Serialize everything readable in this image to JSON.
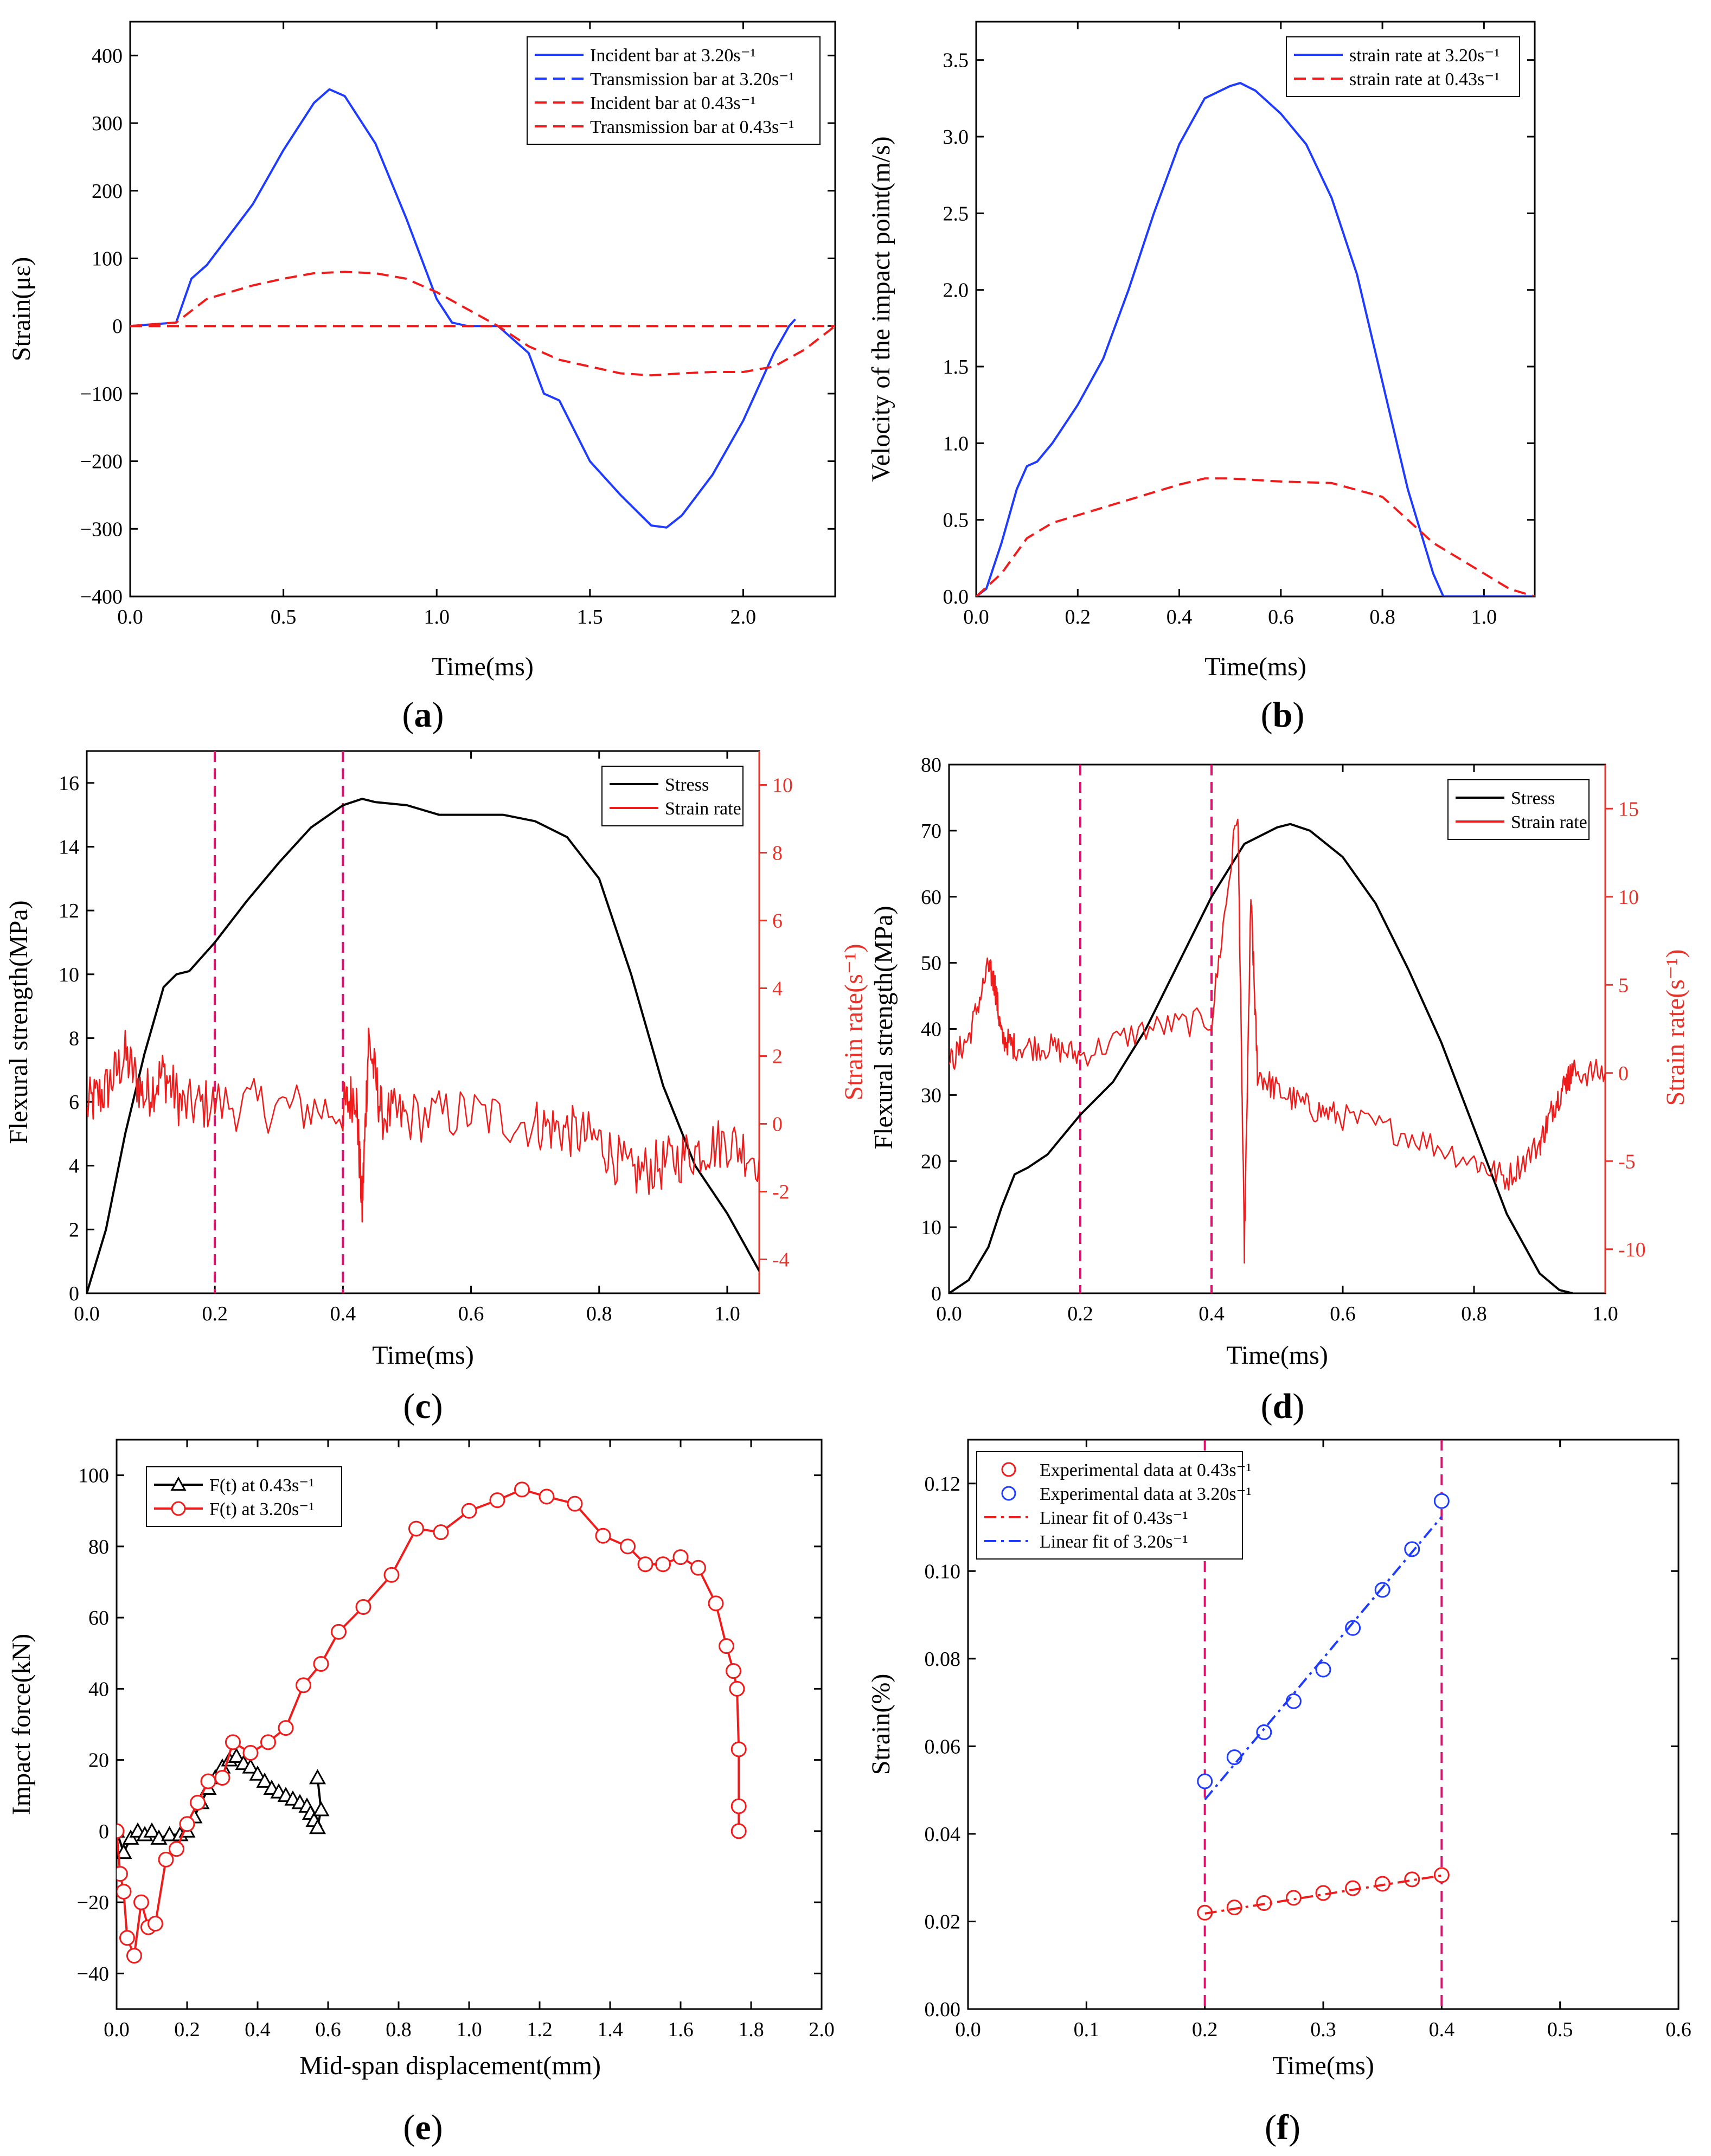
{
  "colors": {
    "blue": "#1f3bff",
    "red": "#f01c1c",
    "black": "#000000",
    "magenta": "#e0106e",
    "axis_red": "#e8332a"
  },
  "chart_data": [
    {
      "id": "a",
      "caption": "(a)",
      "caption_letter": "a",
      "type": "line",
      "title": "",
      "xlabel": "Time(ms)",
      "ylabel": "Strain(με)",
      "xlim": [
        0,
        2.3
      ],
      "ylim": [
        -400,
        450
      ],
      "xticks": [
        0.0,
        0.5,
        1.0,
        1.5,
        2.0
      ],
      "xtick_labels": [
        "0.0",
        "0.5",
        "1.0",
        "1.5",
        "2.0"
      ],
      "yticks": [
        -400,
        -300,
        -200,
        -100,
        0,
        100,
        200,
        300,
        400
      ],
      "ytick_labels": [
        "−400",
        "−300",
        "−200",
        "−100",
        "0",
        "100",
        "200",
        "300",
        "400"
      ],
      "legend_position": "top-right",
      "series": [
        {
          "name": "Incident bar at 3.20s⁻¹",
          "color": "blue",
          "style": "solid",
          "x": [
            0,
            0.15,
            0.2,
            0.25,
            0.3,
            0.4,
            0.5,
            0.6,
            0.65,
            0.7,
            0.8,
            0.9,
            1.0,
            1.05,
            1.1,
            1.2,
            1.3,
            1.35,
            1.4,
            1.5,
            1.6,
            1.7,
            1.75,
            1.8,
            1.9,
            2.0,
            2.1,
            2.15,
            2.17
          ],
          "y": [
            0,
            5,
            70,
            90,
            120,
            180,
            260,
            330,
            350,
            340,
            270,
            160,
            40,
            5,
            0,
            0,
            -40,
            -100,
            -110,
            -200,
            -250,
            -295,
            -298,
            -280,
            -220,
            -140,
            -40,
            0,
            10
          ]
        },
        {
          "name": "Transmission bar at 3.20s⁻¹",
          "color": "blue",
          "style": "dashed",
          "x": [
            0,
            2.17
          ],
          "y": [
            0,
            0
          ]
        },
        {
          "name": "Incident bar at 0.43s⁻¹",
          "color": "red",
          "style": "dashed",
          "x": [
            0,
            0.15,
            0.25,
            0.4,
            0.5,
            0.6,
            0.7,
            0.8,
            0.9,
            1.0,
            1.1,
            1.2,
            1.3,
            1.4,
            1.6,
            1.7,
            1.8,
            1.9,
            2.0,
            2.1,
            2.2,
            2.3
          ],
          "y": [
            0,
            5,
            40,
            60,
            70,
            78,
            80,
            78,
            70,
            50,
            25,
            0,
            -30,
            -50,
            -70,
            -73,
            -70,
            -68,
            -68,
            -60,
            -35,
            0
          ]
        },
        {
          "name": "Transmission bar at 0.43s⁻¹",
          "color": "red",
          "style": "dashed",
          "x": [
            0,
            2.3
          ],
          "y": [
            0,
            0
          ]
        }
      ]
    },
    {
      "id": "b",
      "caption": "(b)",
      "caption_letter": "b",
      "type": "line",
      "title": "",
      "xlabel": "Time(ms)",
      "ylabel": "Velocity of the impact point(m/s)",
      "xlim": [
        0,
        1.1
      ],
      "ylim": [
        0,
        3.75
      ],
      "xticks": [
        0.0,
        0.2,
        0.4,
        0.6,
        0.8,
        1.0
      ],
      "xtick_labels": [
        "0.0",
        "0.2",
        "0.4",
        "0.6",
        "0.8",
        "1.0"
      ],
      "yticks": [
        0.0,
        0.5,
        1.0,
        1.5,
        2.0,
        2.5,
        3.0,
        3.5
      ],
      "ytick_labels": [
        "0.0",
        "0.5",
        "1.0",
        "1.5",
        "2.0",
        "2.5",
        "3.0",
        "3.5"
      ],
      "legend_position": "top-right",
      "series": [
        {
          "name": "strain rate at 3.20s⁻¹",
          "color": "blue",
          "style": "solid",
          "x": [
            0,
            0.02,
            0.05,
            0.08,
            0.1,
            0.12,
            0.15,
            0.2,
            0.25,
            0.3,
            0.35,
            0.4,
            0.45,
            0.5,
            0.52,
            0.55,
            0.6,
            0.65,
            0.7,
            0.75,
            0.8,
            0.85,
            0.9,
            0.92,
            0.95,
            1.1
          ],
          "y": [
            0,
            0.05,
            0.35,
            0.7,
            0.85,
            0.88,
            1.0,
            1.25,
            1.55,
            2.0,
            2.5,
            2.95,
            3.25,
            3.33,
            3.35,
            3.3,
            3.15,
            2.95,
            2.6,
            2.1,
            1.4,
            0.7,
            0.15,
            0,
            0,
            0
          ]
        },
        {
          "name": "strain rate at 0.43s⁻¹",
          "color": "red",
          "style": "dashed",
          "x": [
            0,
            0.05,
            0.1,
            0.15,
            0.2,
            0.3,
            0.4,
            0.45,
            0.5,
            0.6,
            0.7,
            0.8,
            0.85,
            0.9,
            0.95,
            1.0,
            1.05,
            1.1
          ],
          "y": [
            0,
            0.15,
            0.38,
            0.48,
            0.53,
            0.63,
            0.73,
            0.77,
            0.77,
            0.75,
            0.74,
            0.65,
            0.5,
            0.35,
            0.25,
            0.15,
            0.05,
            0.0
          ]
        }
      ]
    },
    {
      "id": "c",
      "caption": "(c)",
      "caption_letter": "c",
      "type": "line",
      "title": "",
      "xlabel": "Time(ms)",
      "ylabel": "Flexural strength(MPa)",
      "y2label": "Strain rate(s⁻¹)",
      "xlim": [
        0,
        1.05
      ],
      "ylim": [
        0,
        17
      ],
      "y2lim": [
        -5,
        11
      ],
      "xticks": [
        0.0,
        0.2,
        0.4,
        0.6,
        0.8,
        1.0
      ],
      "xtick_labels": [
        "0.0",
        "0.2",
        "0.4",
        "0.6",
        "0.8",
        "1.0"
      ],
      "yticks": [
        0,
        2,
        4,
        6,
        8,
        10,
        12,
        14,
        16
      ],
      "ytick_labels": [
        "0",
        "2",
        "4",
        "6",
        "8",
        "10",
        "12",
        "14",
        "16"
      ],
      "y2ticks": [
        -4,
        -2,
        0,
        2,
        4,
        6,
        8,
        10
      ],
      "y2tick_labels": [
        "-4",
        "-2",
        "0",
        "2",
        "4",
        "6",
        "8",
        "10"
      ],
      "vlines": [
        0.2,
        0.4
      ],
      "legend_position": "top-right",
      "series": [
        {
          "name": "Stress",
          "color": "black",
          "style": "solid",
          "axis": "left",
          "x": [
            0,
            0.03,
            0.06,
            0.09,
            0.12,
            0.14,
            0.16,
            0.2,
            0.25,
            0.3,
            0.35,
            0.4,
            0.43,
            0.45,
            0.5,
            0.55,
            0.6,
            0.65,
            0.7,
            0.75,
            0.8,
            0.85,
            0.9,
            0.95,
            1.0,
            1.05
          ],
          "y": [
            0,
            2.0,
            5.0,
            7.5,
            9.6,
            10.0,
            10.1,
            11.0,
            12.3,
            13.5,
            14.6,
            15.3,
            15.5,
            15.4,
            15.3,
            15.0,
            15.0,
            15.0,
            14.8,
            14.3,
            13.0,
            10.0,
            6.5,
            4.0,
            2.5,
            0.7
          ]
        },
        {
          "name": "Strain rate",
          "color": "red",
          "style": "solid",
          "axis": "right",
          "noisy": true,
          "x": [
            0,
            0.03,
            0.06,
            0.09,
            0.12,
            0.15,
            0.2,
            0.3,
            0.4,
            0.42,
            0.43,
            0.44,
            0.46,
            0.5,
            0.6,
            0.7,
            0.75,
            0.8,
            0.85,
            0.9,
            0.95,
            1.0,
            1.05
          ],
          "y": [
            0.5,
            1.0,
            2.0,
            0.8,
            1.5,
            0.5,
            0.6,
            0.5,
            0.4,
            1.0,
            -2.5,
            2.5,
            0.3,
            0.2,
            0.3,
            0.0,
            -0.2,
            -0.5,
            -1.5,
            -1.2,
            -0.8,
            -0.5,
            -1.0
          ]
        }
      ]
    },
    {
      "id": "d",
      "caption": "(d)",
      "caption_letter": "d",
      "type": "line",
      "title": "",
      "xlabel": "Time(ms)",
      "ylabel": "Flexural strength(MPa)",
      "y2label": "Strain rate(s⁻¹)",
      "xlim": [
        0,
        1.0
      ],
      "ylim": [
        0,
        80
      ],
      "y2lim": [
        -12.5,
        17.5
      ],
      "xticks": [
        0.0,
        0.2,
        0.4,
        0.6,
        0.8,
        1.0
      ],
      "xtick_labels": [
        "0.0",
        "0.2",
        "0.4",
        "0.6",
        "0.8",
        "1.0"
      ],
      "yticks": [
        0,
        10,
        20,
        30,
        40,
        50,
        60,
        70,
        80
      ],
      "ytick_labels": [
        "0",
        "10",
        "20",
        "30",
        "40",
        "50",
        "60",
        "70",
        "80"
      ],
      "y2ticks": [
        -10,
        -5,
        0,
        5,
        10,
        15
      ],
      "y2tick_labels": [
        "-10",
        "-5",
        "0",
        "5",
        "10",
        "15"
      ],
      "vlines": [
        0.2,
        0.4
      ],
      "legend_position": "top-right",
      "series": [
        {
          "name": "Stress",
          "color": "black",
          "style": "solid",
          "axis": "left",
          "x": [
            0,
            0.03,
            0.06,
            0.08,
            0.1,
            0.12,
            0.15,
            0.2,
            0.25,
            0.3,
            0.35,
            0.4,
            0.45,
            0.5,
            0.52,
            0.55,
            0.6,
            0.65,
            0.7,
            0.75,
            0.8,
            0.85,
            0.9,
            0.93,
            0.95
          ],
          "y": [
            0,
            2,
            7,
            13,
            18,
            19,
            21,
            27,
            32,
            40,
            50,
            60,
            68,
            70.5,
            71,
            70,
            66,
            59,
            49,
            38,
            25,
            12,
            3,
            0.5,
            0
          ]
        },
        {
          "name": "Strain rate",
          "color": "red",
          "style": "solid",
          "axis": "right",
          "noisy": true,
          "x": [
            0,
            0.03,
            0.06,
            0.07,
            0.08,
            0.1,
            0.15,
            0.2,
            0.3,
            0.4,
            0.44,
            0.45,
            0.46,
            0.47,
            0.5,
            0.55,
            0.6,
            0.7,
            0.8,
            0.85,
            0.9,
            0.92,
            0.94,
            0.95,
            1.0
          ],
          "y": [
            0.5,
            2.0,
            6.0,
            5.0,
            2.0,
            1.5,
            1.5,
            1.0,
            2.5,
            3.0,
            15.0,
            -10.0,
            10.0,
            0.0,
            -1.0,
            -2.0,
            -2.5,
            -3.5,
            -5.0,
            -6.0,
            -4.0,
            -2.0,
            -0.5,
            0.0,
            0.0
          ]
        }
      ]
    },
    {
      "id": "e",
      "caption": "(e)",
      "caption_letter": "e",
      "type": "line",
      "title": "",
      "xlabel": "Mid-span displacement(mm)",
      "ylabel": "Impact force(kN)",
      "xlim": [
        0,
        2.0
      ],
      "ylim": [
        -50,
        110
      ],
      "xticks": [
        0.0,
        0.2,
        0.4,
        0.6,
        0.8,
        1.0,
        1.2,
        1.4,
        1.6,
        1.8,
        2.0
      ],
      "xtick_labels": [
        "0.0",
        "0.2",
        "0.4",
        "0.6",
        "0.8",
        "1.0",
        "1.2",
        "1.4",
        "1.6",
        "1.8",
        "2.0"
      ],
      "yticks": [
        -40,
        -20,
        0,
        20,
        40,
        60,
        80,
        100
      ],
      "ytick_labels": [
        "−40",
        "−20",
        "0",
        "20",
        "40",
        "60",
        "80",
        "100"
      ],
      "legend_position": "top-left",
      "series": [
        {
          "name": "F(t) at 0.43s⁻¹",
          "color": "black",
          "style": "solid",
          "marker": "triangle",
          "x": [
            0.0,
            0.02,
            0.04,
            0.06,
            0.08,
            0.1,
            0.12,
            0.15,
            0.18,
            0.2,
            0.22,
            0.24,
            0.26,
            0.28,
            0.3,
            0.32,
            0.34,
            0.36,
            0.38,
            0.4,
            0.42,
            0.44,
            0.46,
            0.48,
            0.5,
            0.52,
            0.54,
            0.55,
            0.56,
            0.57,
            0.58,
            0.57
          ],
          "y": [
            0,
            -6,
            -2,
            0,
            -1,
            0,
            -2,
            -1,
            -1,
            0,
            4,
            8,
            12,
            15,
            18,
            20,
            21,
            19,
            18,
            16,
            14,
            12,
            11,
            10,
            9,
            8,
            7,
            5,
            3,
            1,
            6,
            15
          ]
        },
        {
          "name": "F(t) at 3.20s⁻¹",
          "color": "red",
          "style": "solid",
          "marker": "circle",
          "x": [
            0.0,
            0.01,
            0.02,
            0.03,
            0.05,
            0.07,
            0.09,
            0.11,
            0.14,
            0.17,
            0.2,
            0.23,
            0.26,
            0.3,
            0.33,
            0.38,
            0.43,
            0.48,
            0.53,
            0.58,
            0.63,
            0.7,
            0.78,
            0.85,
            0.92,
            1.0,
            1.08,
            1.15,
            1.22,
            1.3,
            1.38,
            1.45,
            1.5,
            1.55,
            1.6,
            1.65,
            1.7,
            1.73,
            1.75,
            1.76,
            1.765,
            1.765,
            1.765
          ],
          "y": [
            0,
            -12,
            -17,
            -30,
            -35,
            -20,
            -27,
            -26,
            -8,
            -5,
            2,
            8,
            14,
            15,
            25,
            22,
            25,
            29,
            41,
            47,
            56,
            63,
            72,
            85,
            84,
            90,
            93,
            96,
            94,
            92,
            83,
            80,
            75,
            75,
            77,
            74,
            64,
            52,
            45,
            40,
            23,
            7,
            0
          ]
        }
      ]
    },
    {
      "id": "f",
      "caption": "(f)",
      "caption_letter": "f",
      "type": "scatter",
      "title": "",
      "xlabel": "Time(ms)",
      "ylabel": "Strain(%)",
      "xlim": [
        0,
        0.6
      ],
      "ylim": [
        0,
        0.13
      ],
      "xticks": [
        0.0,
        0.1,
        0.2,
        0.3,
        0.4,
        0.5,
        0.6
      ],
      "xtick_labels": [
        "0.0",
        "0.1",
        "0.2",
        "0.3",
        "0.4",
        "0.5",
        "0.6"
      ],
      "yticks": [
        0.0,
        0.02,
        0.04,
        0.06,
        0.08,
        0.1,
        0.12
      ],
      "ytick_labels": [
        "0.00",
        "0.02",
        "0.04",
        "0.06",
        "0.08",
        "0.10",
        "0.12"
      ],
      "vlines": [
        0.2,
        0.4
      ],
      "legend_position": "top-left",
      "series": [
        {
          "name": "Experimental data at 0.43s⁻¹",
          "color": "red",
          "style": "none",
          "marker": "circle",
          "x": [
            0.2,
            0.225,
            0.25,
            0.275,
            0.3,
            0.325,
            0.35,
            0.375,
            0.4
          ],
          "y": [
            0.022,
            0.0232,
            0.0242,
            0.0254,
            0.0265,
            0.0276,
            0.0286,
            0.0296,
            0.0306
          ]
        },
        {
          "name": "Experimental data at 3.20s⁻¹",
          "color": "blue",
          "style": "none",
          "marker": "circle",
          "x": [
            0.2,
            0.225,
            0.25,
            0.275,
            0.3,
            0.325,
            0.35,
            0.375,
            0.4
          ],
          "y": [
            0.052,
            0.0575,
            0.0632,
            0.0703,
            0.0775,
            0.087,
            0.0957,
            0.105,
            0.116
          ]
        },
        {
          "name": "Linear fit of 0.43s⁻¹",
          "color": "red",
          "style": "dashdot",
          "x": [
            0.2,
            0.4
          ],
          "y": [
            0.0218,
            0.0305
          ]
        },
        {
          "name": "Linear fit of 3.20s⁻¹",
          "color": "blue",
          "style": "dashdot",
          "x": [
            0.2,
            0.4
          ],
          "y": [
            0.0478,
            0.1124
          ]
        }
      ]
    }
  ]
}
